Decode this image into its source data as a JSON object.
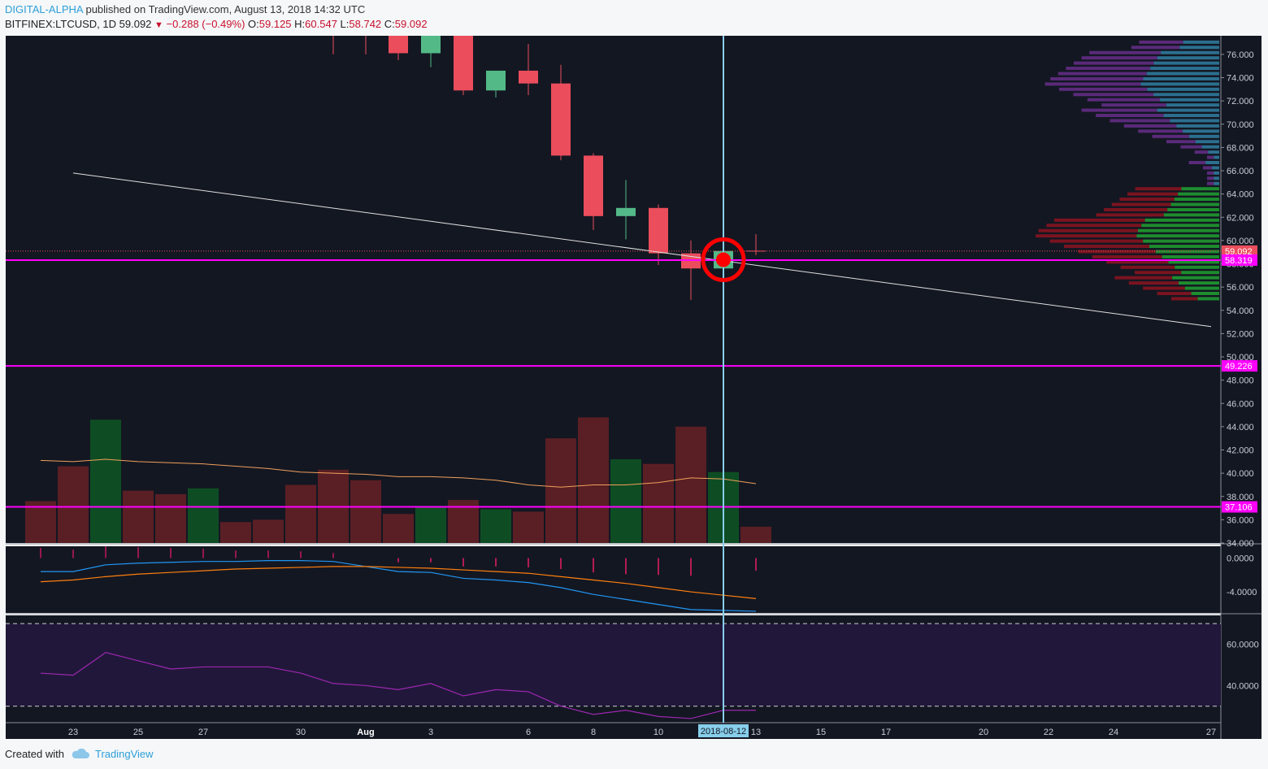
{
  "header": {
    "author": "DIGITAL-ALPHA",
    "published": "published on TradingView.com, August 13, 2018 14:32 UTC",
    "symbol": "BITFINEX:LTCUSD, 1D",
    "last": "59.092",
    "change": "−0.288 (−0.49%)",
    "o_label": "O:",
    "o": "59.125",
    "h_label": "H:",
    "h": "60.547",
    "l_label": "L:",
    "l": "58.742",
    "c_label": "C:",
    "c": "59.092"
  },
  "footer": {
    "created": "Created with",
    "brand": "TradingView"
  },
  "colors": {
    "bg": "#131722",
    "up": "#53b987",
    "down": "#eb4d5c",
    "magenta": "#ff00ff",
    "cursor": "#87ceeb",
    "marker": "#ff0000"
  },
  "chart_data": [
    {
      "type": "candlestick",
      "title": "BITFINEX:LTCUSD, 1D",
      "x_tick_labels": [
        "23",
        "25",
        "27",
        "30",
        "Aug",
        "3",
        "6",
        "8",
        "10",
        "2018-08-12",
        "13",
        "15",
        "17",
        "20",
        "22",
        "24",
        "27"
      ],
      "y_tick_labels": [
        "34.000",
        "36.000",
        "38.000",
        "40.000",
        "42.000",
        "44.000",
        "46.000",
        "48.000",
        "50.000",
        "52.000",
        "54.000",
        "56.000",
        "58.000",
        "60.000",
        "62.000",
        "64.000",
        "66.000",
        "68.000",
        "70.000",
        "72.000",
        "74.000",
        "76.000"
      ],
      "ylim": [
        34,
        77.6
      ],
      "candles": [
        {
          "date": "2018-07-31",
          "o": 80.0,
          "h": 81.0,
          "l": 76.0,
          "c": 78.5
        },
        {
          "date": "2018-08-01",
          "o": 78.5,
          "h": 79.0,
          "l": 76.0,
          "c": 77.6
        },
        {
          "date": "2018-08-02",
          "o": 77.6,
          "h": 78.0,
          "l": 75.5,
          "c": 76.1
        },
        {
          "date": "2018-08-03",
          "o": 76.1,
          "h": 78.0,
          "l": 74.9,
          "c": 77.6
        },
        {
          "date": "2018-08-04",
          "o": 77.6,
          "h": 77.6,
          "l": 72.5,
          "c": 72.9
        },
        {
          "date": "2018-08-05",
          "o": 72.9,
          "h": 74.6,
          "l": 72.3,
          "c": 74.6
        },
        {
          "date": "2018-08-06",
          "o": 74.6,
          "h": 76.9,
          "l": 72.5,
          "c": 73.5
        },
        {
          "date": "2018-08-07",
          "o": 73.5,
          "h": 75.1,
          "l": 66.9,
          "c": 67.3
        },
        {
          "date": "2018-08-08",
          "o": 67.3,
          "h": 67.5,
          "l": 60.9,
          "c": 62.1
        },
        {
          "date": "2018-08-09",
          "o": 62.1,
          "h": 65.2,
          "l": 60.1,
          "c": 62.8
        },
        {
          "date": "2018-08-10",
          "o": 62.8,
          "h": 63.1,
          "l": 57.9,
          "c": 58.9
        },
        {
          "date": "2018-08-11",
          "o": 58.9,
          "h": 60.0,
          "l": 54.9,
          "c": 57.6
        },
        {
          "date": "2018-08-12",
          "o": 57.6,
          "h": 60.1,
          "l": 56.4,
          "c": 59.1
        },
        {
          "date": "2018-08-13",
          "o": 59.125,
          "h": 60.547,
          "l": 58.742,
          "c": 59.092
        }
      ],
      "price_labels": [
        {
          "value": 59.092,
          "label": "59.092"
        },
        {
          "value": 58.319,
          "label": "58.319"
        },
        {
          "value": 49.226,
          "label": "49.226"
        },
        {
          "value": 37.106,
          "label": "37.106"
        }
      ],
      "horizontal_lines": [
        58.319,
        49.226,
        37.106
      ],
      "trendline": [
        {
          "date": "2018-07-23",
          "value": 65.8
        },
        {
          "date": "2018-08-27",
          "value": 52.6
        }
      ],
      "cursor_date": "2018-08-12"
    },
    {
      "type": "bar",
      "series": [
        {
          "name": "",
          "values": [
            {
              "date": "2018-07-22",
              "v": 37.6,
              "dir": "down"
            },
            {
              "date": "2018-07-23",
              "v": 40.6,
              "dir": "down"
            },
            {
              "date": "2018-07-24",
              "v": 44.6,
              "dir": "up"
            },
            {
              "date": "2018-07-25",
              "v": 38.5,
              "dir": "down"
            },
            {
              "date": "2018-07-26",
              "v": 38.2,
              "dir": "down"
            },
            {
              "date": "2018-07-27",
              "v": 38.7,
              "dir": "up"
            },
            {
              "date": "2018-07-28",
              "v": 35.8,
              "dir": "down"
            },
            {
              "date": "2018-07-29",
              "v": 36.0,
              "dir": "down"
            },
            {
              "date": "2018-07-30",
              "v": 39.0,
              "dir": "down"
            },
            {
              "date": "2018-07-31",
              "v": 40.3,
              "dir": "down"
            },
            {
              "date": "2018-08-01",
              "v": 39.4,
              "dir": "down"
            },
            {
              "date": "2018-08-02",
              "v": 36.5,
              "dir": "down"
            },
            {
              "date": "2018-08-03",
              "v": 37.1,
              "dir": "up"
            },
            {
              "date": "2018-08-04",
              "v": 37.7,
              "dir": "down"
            },
            {
              "date": "2018-08-05",
              "v": 36.9,
              "dir": "up"
            },
            {
              "date": "2018-08-06",
              "v": 36.7,
              "dir": "down"
            },
            {
              "date": "2018-08-07",
              "v": 43.0,
              "dir": "down"
            },
            {
              "date": "2018-08-08",
              "v": 44.8,
              "dir": "down"
            },
            {
              "date": "2018-08-09",
              "v": 41.2,
              "dir": "up"
            },
            {
              "date": "2018-08-10",
              "v": 40.8,
              "dir": "down"
            },
            {
              "date": "2018-08-11",
              "v": 44.0,
              "dir": "down"
            },
            {
              "date": "2018-08-12",
              "v": 40.1,
              "dir": "up"
            },
            {
              "date": "2018-08-13",
              "v": 35.4,
              "dir": "down"
            }
          ]
        }
      ],
      "ma": [
        41.1,
        41.0,
        41.2,
        41.0,
        40.9,
        40.8,
        40.6,
        40.4,
        40.1,
        40.0,
        39.9,
        39.7,
        39.7,
        39.6,
        39.4,
        39.0,
        38.8,
        39.0,
        39.0,
        39.2,
        39.6,
        39.5,
        39.1
      ]
    },
    {
      "type": "line",
      "y_tick_labels": [
        "0.0000",
        "-4.0000"
      ],
      "ylim": [
        -6.5,
        1.4
      ],
      "macd": [
        -1.6,
        -1.6,
        -0.8,
        -0.6,
        -0.5,
        -0.4,
        -0.4,
        -0.3,
        -0.3,
        -0.4,
        -1.0,
        -1.6,
        -1.7,
        -2.4,
        -2.6,
        -2.9,
        -3.5,
        -4.3,
        -4.9,
        -5.5,
        -6.1,
        -6.2,
        -6.3
      ],
      "signal": [
        -2.8,
        -2.6,
        -2.2,
        -1.9,
        -1.7,
        -1.5,
        -1.3,
        -1.2,
        -1.1,
        -1.0,
        -1.0,
        -1.1,
        -1.2,
        -1.4,
        -1.6,
        -1.8,
        -2.2,
        -2.6,
        -3.0,
        -3.5,
        -4.0,
        -4.4,
        -4.8
      ],
      "histogram": [
        1.2,
        1.0,
        1.4,
        1.3,
        1.2,
        1.1,
        0.9,
        0.9,
        0.8,
        0.6,
        0,
        -0.5,
        -0.5,
        -1.0,
        -1.0,
        -1.1,
        -1.3,
        -1.7,
        -1.9,
        -2.0,
        -2.1,
        -1.8,
        -1.5
      ]
    },
    {
      "type": "line",
      "y_tick_labels": [
        "60.0000",
        "40.0000"
      ],
      "ylim": [
        22,
        74
      ],
      "bands": [
        70,
        30
      ],
      "rsi": [
        46,
        45,
        56,
        52,
        48,
        49,
        49,
        49,
        46,
        41,
        40,
        38,
        41,
        35,
        38,
        37,
        30,
        26,
        28,
        25,
        24,
        28,
        28
      ]
    }
  ]
}
